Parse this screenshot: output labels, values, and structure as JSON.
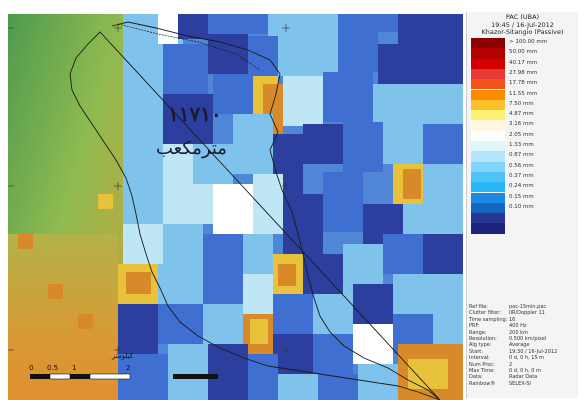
{
  "map": {
    "overlay_number": "١١٧١٠",
    "overlay_place": "مترمكعب",
    "scale_labels": [
      "0",
      "0.5",
      "1",
      "2"
    ],
    "scale_unit": "كيلومتر"
  },
  "legend": {
    "title_line1": "PAC (UBA)",
    "title_line2": "19:45 / 16-Jul-2012",
    "title_line3": "Khazor-Sitangio (Passive)",
    "colors": [
      "#8b0000",
      "#b30000",
      "#d40000",
      "#e53935",
      "#f4511e",
      "#fb8c00",
      "#fbc02d",
      "#fff176",
      "#fff8e1",
      "#ffffff",
      "#e0f7fa",
      "#b3e5fc",
      "#81d4fa",
      "#4fc3f7",
      "#29b6f6",
      "#1e88e5",
      "#1565c0",
      "#283593",
      "#1a237e"
    ],
    "labels": [
      "> 100.00 mm",
      "50.00 mm",
      "40.17 mm",
      "27.98 mm",
      "17.78 mm",
      "11.55 mm",
      "7.50 mm",
      "4.87 mm",
      "3.16 mm",
      "2.05 mm",
      "1.33 mm",
      "0.87 mm",
      "0.56 mm",
      "0.37 mm",
      "0.24 mm",
      "0.15 mm",
      "0.10 mm",
      "",
      ""
    ]
  },
  "info": [
    {
      "k": "Ref file:",
      "v": "pac-15min.pac"
    },
    {
      "k": "Clutter filter:",
      "v": "IIR/Doppler 11"
    },
    {
      "k": "Time sampling:",
      "v": "16"
    },
    {
      "k": "PRF:",
      "v": "400 Hz"
    },
    {
      "k": "Range:",
      "v": "200 km"
    },
    {
      "k": "Resolution:",
      "v": "0.500 km/pixel"
    },
    {
      "k": "Alg type:",
      "v": "Average"
    },
    {
      "k": "Start:",
      "v": "19:30 / 16-Jul-2012"
    },
    {
      "k": "Interval:",
      "v": "0 d, 0 h, 15 m"
    },
    {
      "k": "Num Proc:",
      "v": "2"
    },
    {
      "k": "Max Time:",
      "v": "0 d, 0 h, 0 m"
    },
    {
      "k": "Data:",
      "v": "Radar Data"
    },
    {
      "k": "Rainbow®",
      "v": "SELEX-SI"
    }
  ],
  "colors": {
    "deep_blue": "#2c3e9e",
    "blue": "#3f6fd1",
    "light_blue": "#7fc3ec",
    "cyan": "#bfe6f5",
    "yellow": "#e8c23a",
    "orange": "#d88a2a",
    "green": "#6fa855",
    "white": "#ffffff"
  }
}
